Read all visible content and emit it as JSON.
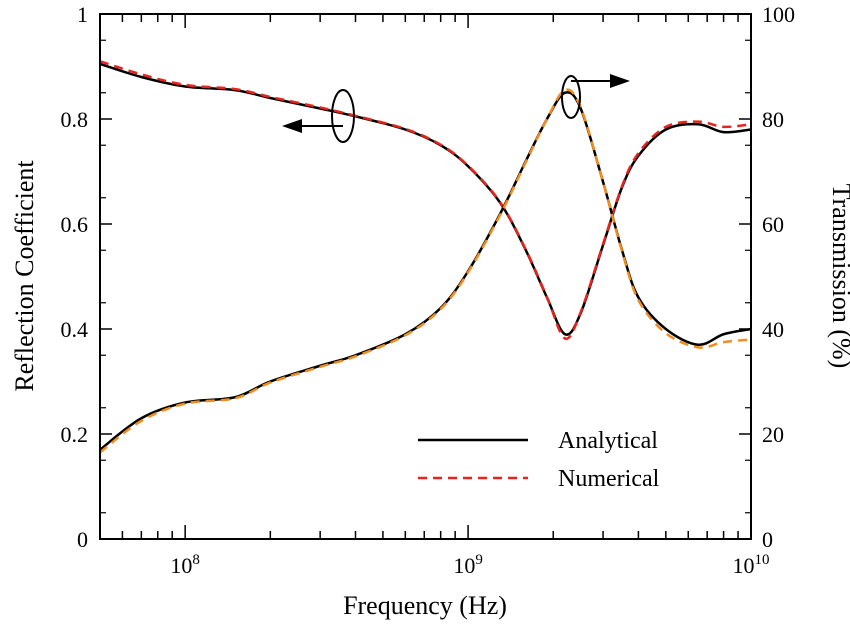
{
  "chart_data": {
    "type": "line",
    "xlabel": "Frequency (Hz)",
    "ylabel_left": "Reflection Coefficient",
    "ylabel_right": "Transmission (%)",
    "x_scale": "log",
    "xlim": [
      50000000,
      10000000000
    ],
    "ylim_left": [
      0,
      1
    ],
    "ylim_right": [
      0,
      100
    ],
    "x_ticks": [
      {
        "value": 100000000,
        "base": "10",
        "exp": "8"
      },
      {
        "value": 1000000000,
        "base": "10",
        "exp": "9"
      },
      {
        "value": 10000000000,
        "base": "10",
        "exp": "10"
      }
    ],
    "y_ticks_left": [
      "0",
      "0.2",
      "0.4",
      "0.6",
      "0.8",
      "1"
    ],
    "y_ticks_right": [
      "0",
      "20",
      "40",
      "60",
      "80",
      "100"
    ],
    "legend": {
      "position": "bottom-right",
      "entries": [
        {
          "label": "Analytical",
          "color": "#000000",
          "style": "solid"
        },
        {
          "label": "Numerical",
          "color": "#e8231d",
          "style": "dashed"
        }
      ]
    },
    "colors": {
      "analytical": "#000000",
      "numerical_reflection": "#e8231d",
      "numerical_transmission": "#f28c1e"
    },
    "x": [
      50000000,
      70000000,
      100000000,
      150000000,
      200000000,
      300000000,
      400000000,
      600000000,
      800000000,
      1000000000,
      1300000000,
      1600000000,
      1900000000,
      2200000000,
      2500000000,
      3000000000,
      3500000000,
      4000000000,
      5000000000,
      6500000000,
      8000000000,
      10000000000
    ],
    "series": [
      {
        "axis": "left",
        "values": [
          0.905,
          0.88,
          0.862,
          0.855,
          0.84,
          0.82,
          0.805,
          0.78,
          0.75,
          0.71,
          0.64,
          0.55,
          0.46,
          0.39,
          0.43,
          0.56,
          0.67,
          0.73,
          0.78,
          0.79,
          0.775,
          0.78
        ]
      },
      {
        "axis": "left",
        "values": [
          0.91,
          0.885,
          0.865,
          0.857,
          0.842,
          0.822,
          0.806,
          0.781,
          0.751,
          0.711,
          0.641,
          0.551,
          0.461,
          0.382,
          0.432,
          0.562,
          0.672,
          0.735,
          0.785,
          0.795,
          0.785,
          0.79
        ]
      },
      {
        "axis": "right",
        "values": [
          17,
          23,
          26,
          27,
          30,
          33,
          35,
          39,
          44,
          51,
          62,
          72,
          80,
          85,
          82,
          68,
          55,
          46,
          40,
          37,
          39,
          40
        ]
      },
      {
        "axis": "right",
        "values": [
          16.5,
          22.5,
          25.8,
          26.8,
          29.8,
          32.8,
          34.8,
          38.8,
          43.8,
          50.8,
          61.8,
          71.8,
          80,
          85.5,
          82.2,
          68,
          54.8,
          45.5,
          39.2,
          36.5,
          37.5,
          38
        ]
      }
    ]
  }
}
